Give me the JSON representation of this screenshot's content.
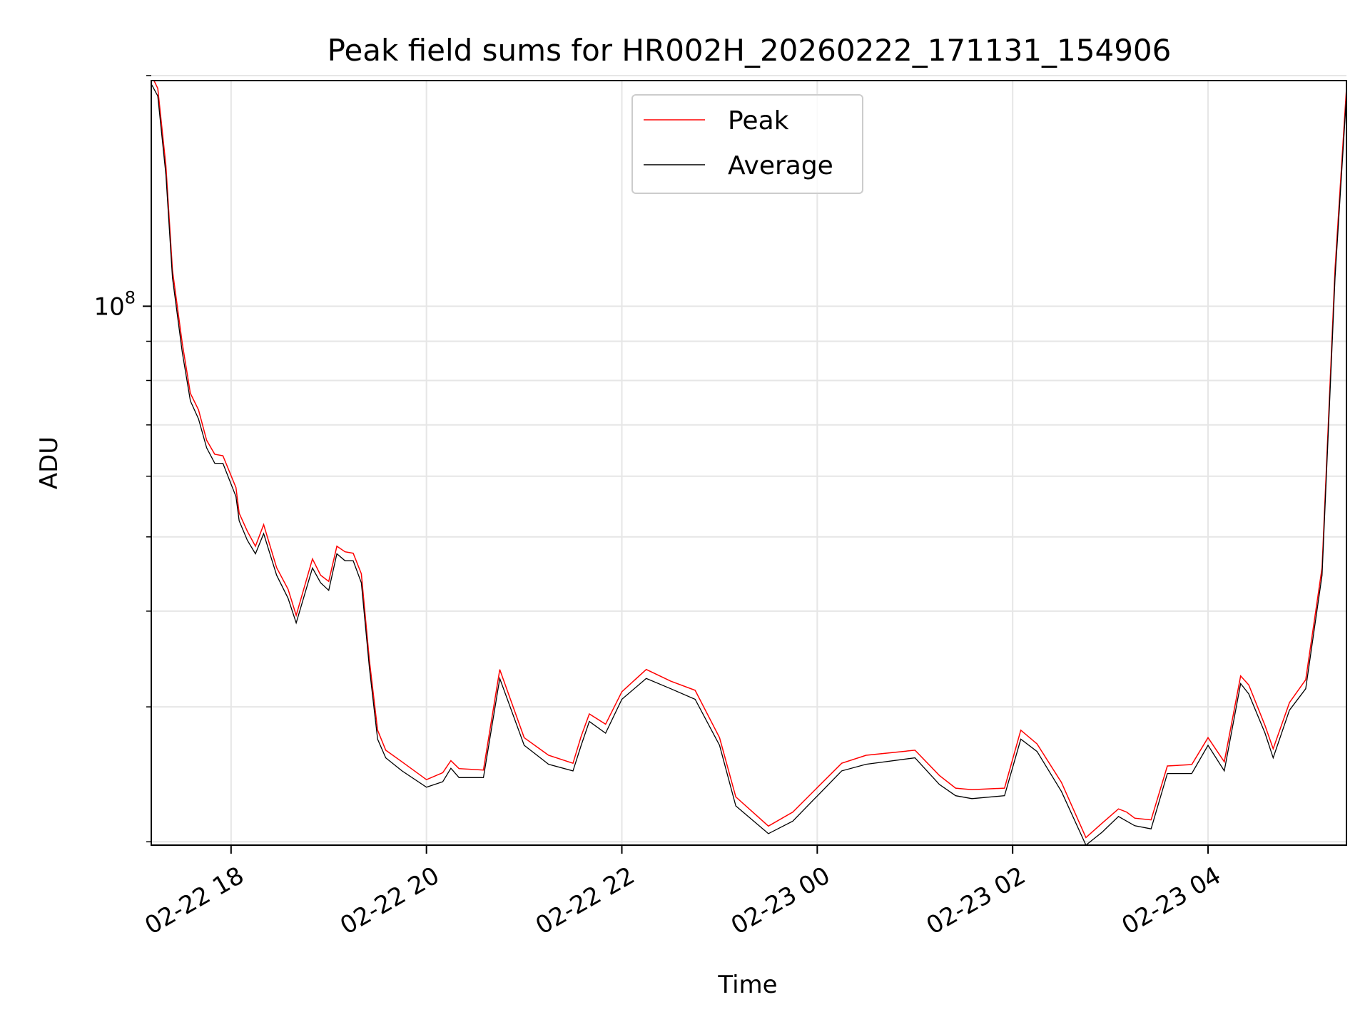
{
  "chart_data": {
    "type": "line",
    "title": "Peak field sums for HR002H_20260222_171131_154906",
    "xlabel": "Time",
    "ylabel": "ADU",
    "y_scale": "log",
    "ylim": [
      19800000,
      197000000
    ],
    "xlim": [
      "2026-02-22 17:11",
      "2026-02-23 05:25"
    ],
    "y_tick_labels": [
      {
        "value": 100000000,
        "mantissa": "10",
        "exponent": "8"
      }
    ],
    "y_minor_ticks": [
      20000000,
      30000000,
      40000000,
      50000000,
      60000000,
      70000000,
      80000000,
      90000000,
      200000000
    ],
    "x_ticks": [
      {
        "time": "2026-02-22 18:00",
        "label": "02-22 18"
      },
      {
        "time": "2026-02-22 20:00",
        "label": "02-22 20"
      },
      {
        "time": "2026-02-22 22:00",
        "label": "02-22 22"
      },
      {
        "time": "2026-02-23 00:00",
        "label": "02-23 00"
      },
      {
        "time": "2026-02-23 02:00",
        "label": "02-23 02"
      },
      {
        "time": "2026-02-23 04:00",
        "label": "02-23 04"
      }
    ],
    "grid": true,
    "legend_position": "top-center",
    "series": [
      {
        "name": "Peak",
        "color": "#ff0000"
      },
      {
        "name": "Average",
        "color": "#000000"
      }
    ],
    "x": [
      "2026-02-22 17:11",
      "2026-02-22 17:15",
      "2026-02-22 17:20",
      "2026-02-22 17:24",
      "2026-02-22 17:30",
      "2026-02-22 17:35",
      "2026-02-22 17:40",
      "2026-02-22 17:45",
      "2026-02-22 17:50",
      "2026-02-22 17:55",
      "2026-02-22 18:03",
      "2026-02-22 18:05",
      "2026-02-22 18:10",
      "2026-02-22 18:15",
      "2026-02-22 18:20",
      "2026-02-22 18:28",
      "2026-02-22 18:35",
      "2026-02-22 18:40",
      "2026-02-22 18:50",
      "2026-02-22 18:55",
      "2026-02-22 19:00",
      "2026-02-22 19:05",
      "2026-02-22 19:10",
      "2026-02-22 19:15",
      "2026-02-22 19:20",
      "2026-02-22 19:25",
      "2026-02-22 19:30",
      "2026-02-22 19:35",
      "2026-02-22 19:45",
      "2026-02-22 20:00",
      "2026-02-22 20:10",
      "2026-02-22 20:15",
      "2026-02-22 20:20",
      "2026-02-22 20:35",
      "2026-02-22 20:45",
      "2026-02-22 21:00",
      "2026-02-22 21:15",
      "2026-02-22 21:30",
      "2026-02-22 21:35",
      "2026-02-22 21:40",
      "2026-02-22 21:50",
      "2026-02-22 22:00",
      "2026-02-22 22:15",
      "2026-02-22 22:30",
      "2026-02-22 22:45",
      "2026-02-22 23:00",
      "2026-02-22 23:10",
      "2026-02-22 23:30",
      "2026-02-22 23:45",
      "2026-02-23 00:15",
      "2026-02-23 00:30",
      "2026-02-23 01:00",
      "2026-02-23 01:15",
      "2026-02-23 01:25",
      "2026-02-23 01:35",
      "2026-02-23 01:55",
      "2026-02-23 02:05",
      "2026-02-23 02:15",
      "2026-02-23 02:30",
      "2026-02-23 02:45",
      "2026-02-23 02:55",
      "2026-02-23 03:05",
      "2026-02-23 03:10",
      "2026-02-23 03:15",
      "2026-02-23 03:25",
      "2026-02-23 03:35",
      "2026-02-23 03:50",
      "2026-02-23 04:00",
      "2026-02-23 04:10",
      "2026-02-23 04:20",
      "2026-02-23 04:25",
      "2026-02-23 04:35",
      "2026-02-23 04:40",
      "2026-02-23 04:50",
      "2026-02-23 05:00",
      "2026-02-23 05:10",
      "2026-02-23 05:18",
      "2026-02-23 05:25"
    ],
    "values": [
      197000000,
      190000000,
      150000000,
      110000000,
      88000000,
      76000000,
      72000000,
      66000000,
      63000000,
      63000000,
      57000000,
      53000000,
      50000000,
      48000000,
      51000000,
      45000000,
      42000000,
      39000000,
      46000000,
      44000000,
      43000000,
      48000000,
      47000000,
      47000000,
      44000000,
      34000000,
      27500000,
      26000000,
      25000000,
      23800000,
      24200000,
      25200000,
      24500000,
      24500000,
      33000000,
      27000000,
      25500000,
      25000000,
      27000000,
      29000000,
      28000000,
      31000000,
      33000000,
      32000000,
      31000000,
      27000000,
      22500000,
      20700000,
      21500000,
      25000000,
      25500000,
      26000000,
      24000000,
      23200000,
      23000000,
      23200000,
      27500000,
      26500000,
      23500000,
      20000000,
      20800000,
      21800000,
      21500000,
      21200000,
      21000000,
      24800000,
      24800000,
      27000000,
      25000000,
      32500000,
      31500000,
      28000000,
      26000000,
      30000000,
      32000000,
      45000000,
      110000000,
      190000000
    ]
  }
}
